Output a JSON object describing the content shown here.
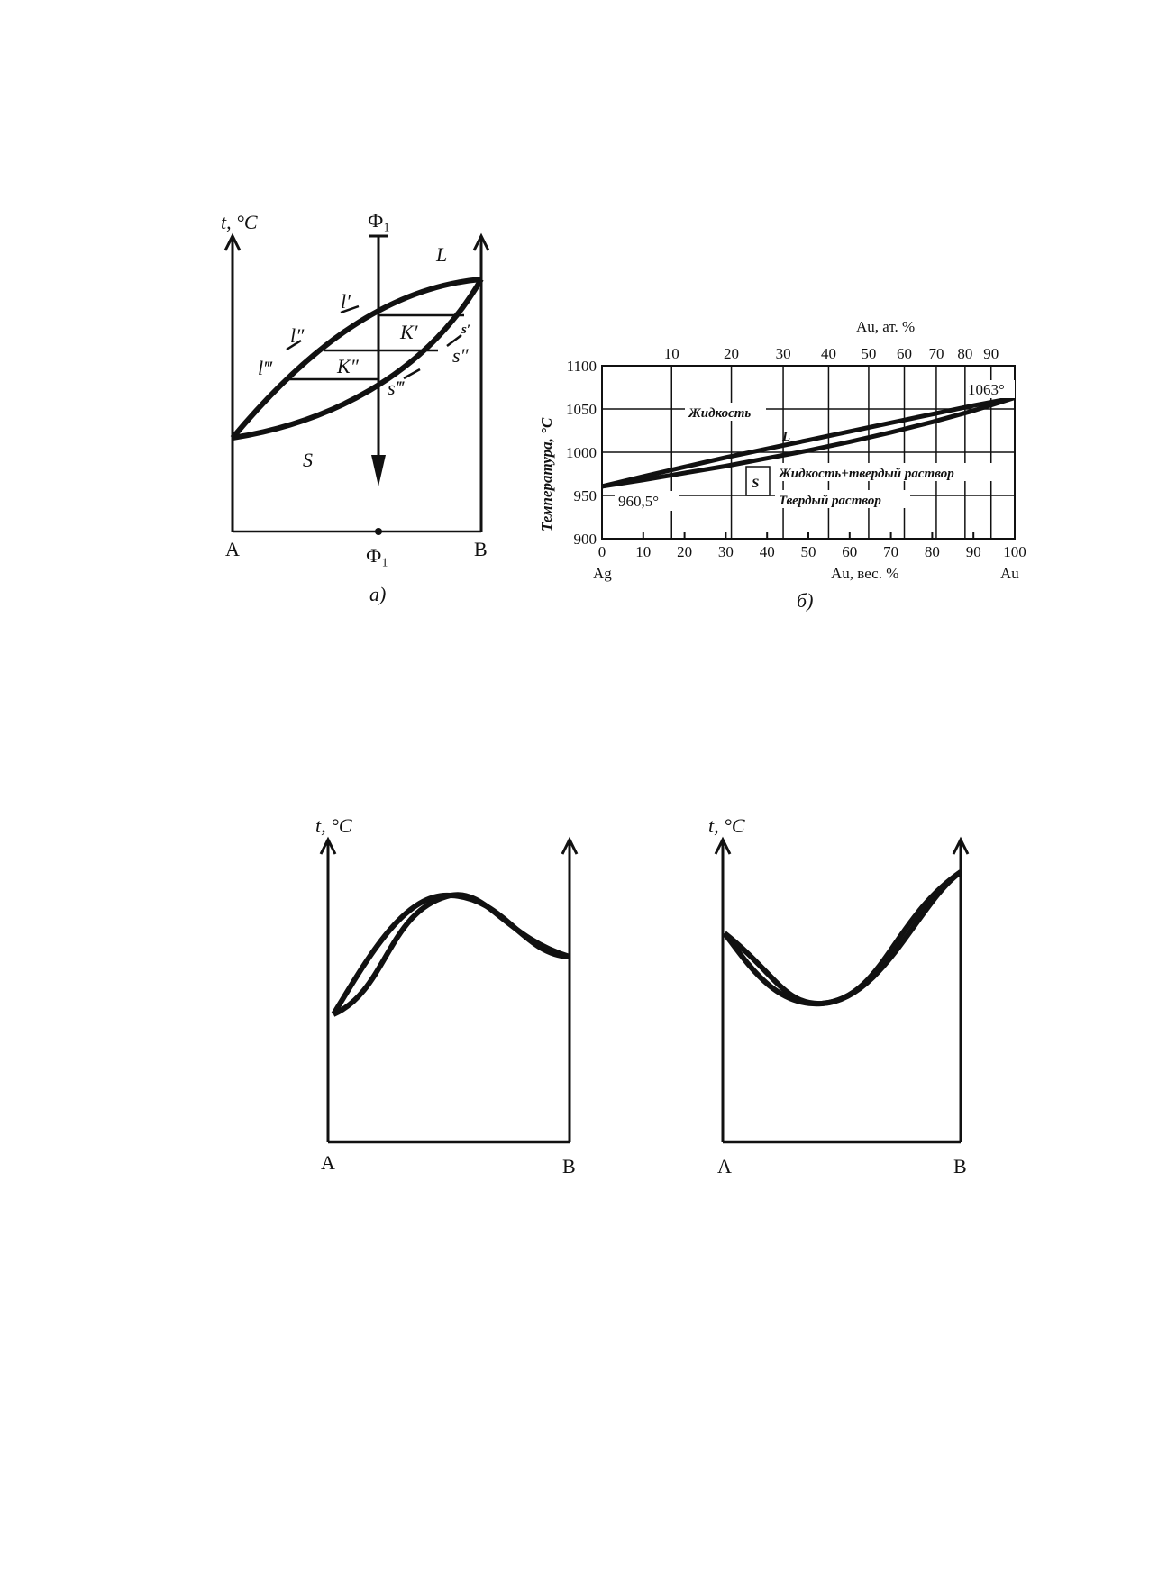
{
  "figure_a": {
    "y_axis": "t, °C",
    "phase_line_top": "Ф₁",
    "phase_line_bottom": "Ф₁",
    "left_end": "A",
    "right_end": "B",
    "region_liquid": "L",
    "region_solid": "S",
    "tie_upper": "K′",
    "tie_lower": "K″",
    "l1": "l′",
    "l2": "l″",
    "l3": "l‴",
    "s1": "s′",
    "s2": "s″",
    "s3": "s‴",
    "caption": "а)"
  },
  "figure_b": {
    "top_axis_title": "Au, ат. %",
    "top_ticks": [
      "10",
      "20",
      "30",
      "40",
      "50",
      "60",
      "70",
      "80",
      "90"
    ],
    "y_label": "Температура, °C",
    "y_ticks": [
      "1100",
      "1050",
      "1000",
      "950",
      "900"
    ],
    "x_ticks": [
      "0",
      "10",
      "20",
      "30",
      "40",
      "50",
      "60",
      "70",
      "80",
      "90",
      "100"
    ],
    "x_left": "Ag",
    "x_title": "Au, вес. %",
    "x_right": "Au",
    "label_liquid": "Жидкость",
    "label_mix": "Жидкость+твердый раствор",
    "label_solid": "Твердый раствор",
    "mark_L": "L",
    "mark_S": "S",
    "temp_left": "960,5°",
    "temp_right": "1063°",
    "caption": "б)"
  },
  "chart_data": [
    {
      "type": "line",
      "title": "",
      "xlabel": "Au, вес. %",
      "ylabel": "Температура, °C",
      "xlim": [
        0,
        100
      ],
      "ylim": [
        900,
        1100
      ],
      "x2label": "Au, ат. %",
      "x": [
        0,
        10,
        20,
        30,
        40,
        50,
        60,
        70,
        80,
        90,
        100
      ],
      "series": [
        {
          "values": [
            960.5,
            972,
            983,
            994,
            1004,
            1014,
            1024,
            1034,
            1044,
            1054,
            1063
          ]
        },
        {
          "values": [
            960.5,
            968,
            976,
            984,
            993,
            1002,
            1012,
            1023,
            1035,
            1048,
            1063
          ]
        }
      ]
    }
  ],
  "figure_c": {
    "y_axis": "t, °C",
    "left_end": "A",
    "right_end": "B"
  },
  "figure_d": {
    "y_axis": "t, °C",
    "left_end": "A",
    "right_end": "B"
  }
}
